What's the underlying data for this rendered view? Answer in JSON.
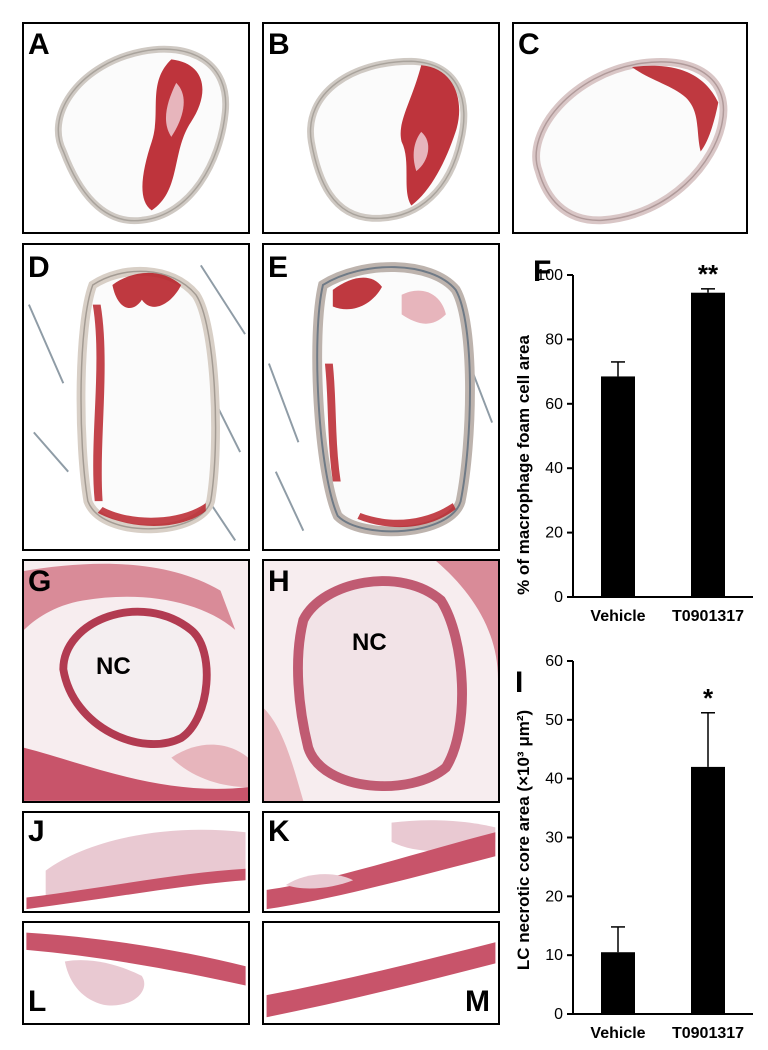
{
  "panels": {
    "A": "A",
    "B": "B",
    "C": "C",
    "D": "D",
    "E": "E",
    "G": "G",
    "H": "H",
    "J": "J",
    "K": "K",
    "L": "L",
    "M": "M",
    "nc_g": "NC",
    "nc_h": "NC"
  },
  "colors": {
    "stain_red": "#b8232b",
    "tissue_pink": "#e7b5bc",
    "he_pink": "#d98b98",
    "vessel_wall": "#d8d2cc",
    "bar": "#000000"
  },
  "chart_data": [
    {
      "label": "F",
      "type": "bar",
      "categories": [
        "Vehicle",
        "T0901317"
      ],
      "values": [
        68.5,
        94.5
      ],
      "errors": [
        4.5,
        1.2
      ],
      "significance": [
        "",
        "**"
      ],
      "ylabel": "% of macrophage foam cell area",
      "ylim": [
        0,
        100
      ],
      "yticks": [
        "0",
        "20",
        "40",
        "60",
        "80",
        "100"
      ]
    },
    {
      "label": "I",
      "type": "bar",
      "categories": [
        "Vehicle",
        "T0901317"
      ],
      "values": [
        10.5,
        42
      ],
      "errors": [
        4.3,
        9.2
      ],
      "significance": [
        "",
        "*"
      ],
      "ylabel": "LC necrotic core area (×10³ μm²)",
      "ylim": [
        0,
        60
      ],
      "yticks": [
        "0",
        "10",
        "20",
        "30",
        "40",
        "50",
        "60"
      ]
    }
  ]
}
